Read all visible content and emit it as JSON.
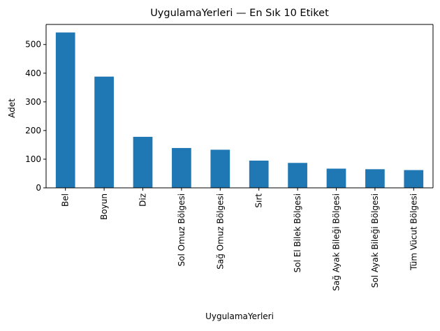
{
  "chart_data": {
    "type": "bar",
    "title": "UygulamaYerleri — En Sık 10 Etiket",
    "xlabel": "UygulamaYerleri",
    "ylabel": "Adet",
    "categories": [
      "Bel",
      "Boyun",
      "Diz",
      "Sol Omuz Bölgesi",
      "Sağ Omuz Bölgesi",
      "Sırt",
      "Sol El Bilek Bölgesi",
      "Sağ Ayak Bileği Bölgesi",
      "Sol Ayak Bileği Bölgesi",
      "Tüm Vücut Bölgesi"
    ],
    "values": [
      542,
      388,
      178,
      139,
      133,
      95,
      87,
      67,
      65,
      62
    ],
    "ylim": [
      0,
      570
    ],
    "yticks": [
      0,
      100,
      200,
      300,
      400,
      500
    ],
    "bar_color": "#1f77b4",
    "grid": false,
    "legend": "none"
  }
}
